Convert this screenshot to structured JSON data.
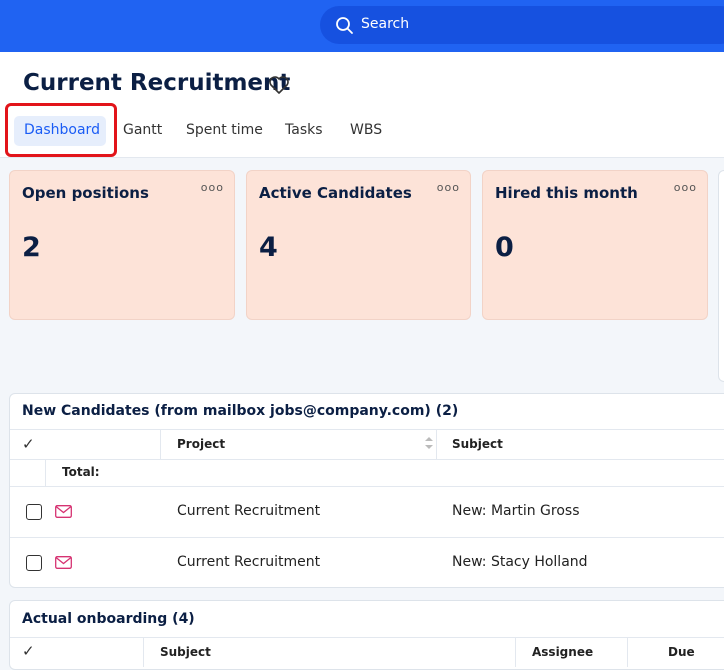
{
  "search": {
    "placeholder": "Search"
  },
  "header": {
    "title": "Current Recruitment"
  },
  "tabs": [
    "Dashboard",
    "Gantt",
    "Spent time",
    "Tasks",
    "WBS"
  ],
  "cards": [
    {
      "title": "Open positions",
      "value": 2
    },
    {
      "title": "Active Candidates",
      "value": 4
    },
    {
      "title": "Hired this month",
      "value": 0
    }
  ],
  "tables": [
    {
      "title": "New Candidates (from mailbox jobs@company.com) (2)",
      "columns": [
        "Project",
        "Subject"
      ],
      "total_label": "Total:",
      "rows": [
        [
          "Current Recruitment",
          "New: Martin Gross"
        ],
        [
          "Current Recruitment",
          "New: Stacy Holland"
        ]
      ]
    },
    {
      "title": "Actual onboarding (4)",
      "columns": [
        "Subject",
        "Assignee",
        "Due"
      ]
    }
  ]
}
